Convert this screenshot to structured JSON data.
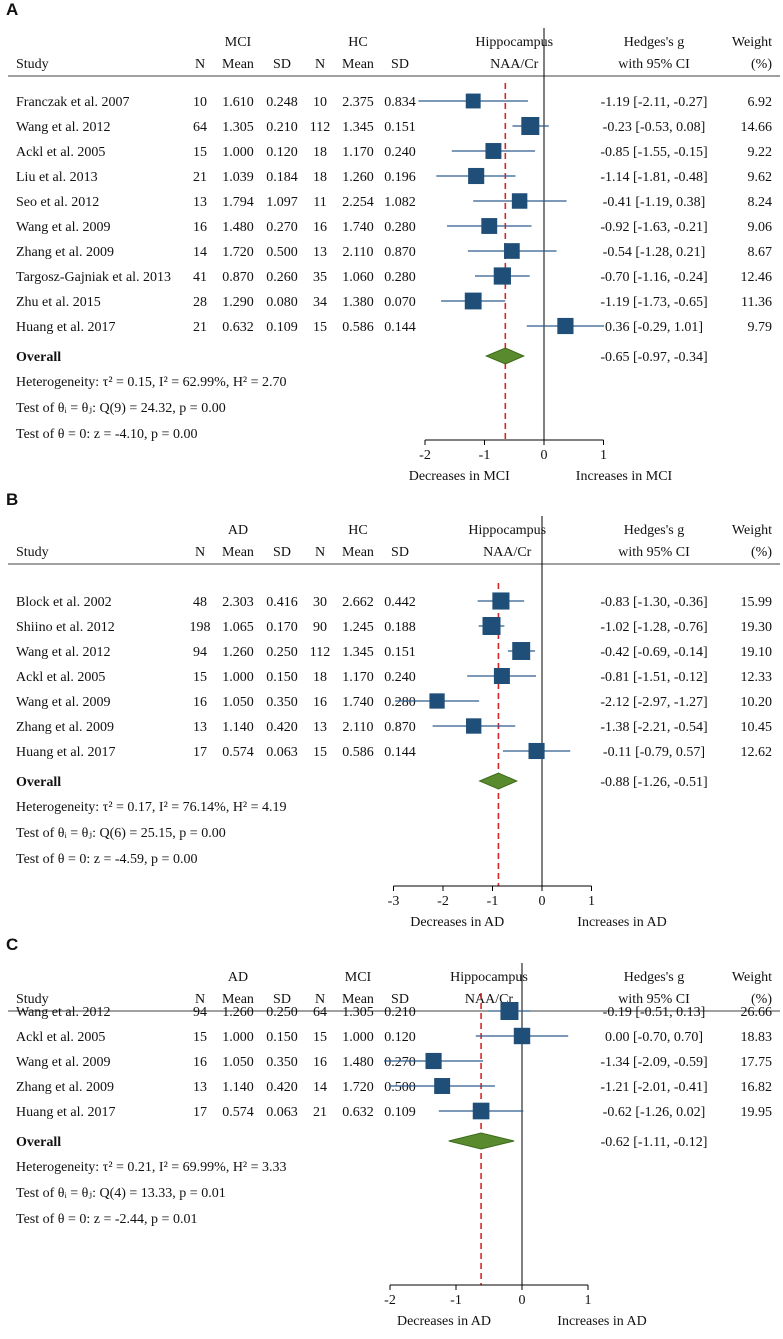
{
  "chart_data": [
    {
      "type": "forest",
      "panel": "A",
      "group1": "MCI",
      "group2": "HC",
      "columns": {
        "study": "Study",
        "n": "N",
        "mean": "Mean",
        "sd": "SD",
        "effect_title1": "Hippocampus",
        "effect_title2": "NAA/Cr",
        "ci_title1": "Hedges's g",
        "ci_title2": "with 95% CI",
        "weight_title1": "Weight",
        "weight_title2": "(%)"
      },
      "studies": [
        {
          "name": "Franczak et al. 2007",
          "n1": "10",
          "mean1": "1.610",
          "sd1": "0.248",
          "n2": "10",
          "mean2": "2.375",
          "sd2": "0.834",
          "g": -1.19,
          "lo": -2.11,
          "hi": -0.27,
          "ci": "-1.19 [-2.11, -0.27]",
          "weight": "6.92"
        },
        {
          "name": "Wang et al. 2012",
          "n1": "64",
          "mean1": "1.305",
          "sd1": "0.210",
          "n2": "112",
          "mean2": "1.345",
          "sd2": "0.151",
          "g": -0.23,
          "lo": -0.53,
          "hi": 0.08,
          "ci": "-0.23 [-0.53,  0.08]",
          "weight": "14.66"
        },
        {
          "name": "Ackl et al. 2005",
          "n1": "15",
          "mean1": "1.000",
          "sd1": "0.120",
          "n2": "18",
          "mean2": "1.170",
          "sd2": "0.240",
          "g": -0.85,
          "lo": -1.55,
          "hi": -0.15,
          "ci": "-0.85 [-1.55, -0.15]",
          "weight": "9.22"
        },
        {
          "name": "Liu et al. 2013",
          "n1": "21",
          "mean1": "1.039",
          "sd1": "0.184",
          "n2": "18",
          "mean2": "1.260",
          "sd2": "0.196",
          "g": -1.14,
          "lo": -1.81,
          "hi": -0.48,
          "ci": "-1.14 [-1.81, -0.48]",
          "weight": "9.62"
        },
        {
          "name": "Seo et al. 2012",
          "n1": "13",
          "mean1": "1.794",
          "sd1": "1.097",
          "n2": "11",
          "mean2": "2.254",
          "sd2": "1.082",
          "g": -0.41,
          "lo": -1.19,
          "hi": 0.38,
          "ci": "-0.41 [-1.19,  0.38]",
          "weight": "8.24"
        },
        {
          "name": "Wang et al. 2009",
          "n1": "16",
          "mean1": "1.480",
          "sd1": "0.270",
          "n2": "16",
          "mean2": "1.740",
          "sd2": "0.280",
          "g": -0.92,
          "lo": -1.63,
          "hi": -0.21,
          "ci": "-0.92 [-1.63, -0.21]",
          "weight": "9.06"
        },
        {
          "name": "Zhang et al. 2009",
          "n1": "14",
          "mean1": "1.720",
          "sd1": "0.500",
          "n2": "13",
          "mean2": "2.110",
          "sd2": "0.870",
          "g": -0.54,
          "lo": -1.28,
          "hi": 0.21,
          "ci": "-0.54 [-1.28,  0.21]",
          "weight": "8.67"
        },
        {
          "name": "Targosz-Gajniak et al. 2013",
          "n1": "41",
          "mean1": "0.870",
          "sd1": "0.260",
          "n2": "35",
          "mean2": "1.060",
          "sd2": "0.280",
          "g": -0.7,
          "lo": -1.16,
          "hi": -0.24,
          "ci": "-0.70 [-1.16, -0.24]",
          "weight": "12.46"
        },
        {
          "name": "Zhu et al. 2015",
          "n1": "28",
          "mean1": "1.290",
          "sd1": "0.080",
          "n2": "34",
          "mean2": "1.380",
          "sd2": "0.070",
          "g": -1.19,
          "lo": -1.73,
          "hi": -0.65,
          "ci": "-1.19 [-1.73, -0.65]",
          "weight": "11.36"
        },
        {
          "name": "Huang et al. 2017",
          "n1": "21",
          "mean1": "0.632",
          "sd1": "0.109",
          "n2": "15",
          "mean2": "0.586",
          "sd2": "0.144",
          "g": 0.36,
          "lo": -0.29,
          "hi": 1.01,
          "ci": " 0.36 [-0.29,  1.01]",
          "weight": "9.79"
        }
      ],
      "overall": {
        "label": "Overall",
        "g": -0.65,
        "lo": -0.97,
        "hi": -0.34,
        "ci": "-0.65 [-0.97, -0.34]"
      },
      "stats": [
        "Heterogeneity: τ² = 0.15, I² = 62.99%, H² = 2.70",
        "Test of θᵢ = θⱼ: Q(9) = 24.32, p = 0.00",
        "Test of θ = 0: z = -4.10, p = 0.00"
      ],
      "xlim": [
        -2,
        1
      ],
      "ticks": [
        -2,
        -1,
        0,
        1
      ],
      "xlabel_left": "Decreases in MCI",
      "xlabel_right": "Increases in MCI"
    },
    {
      "type": "forest",
      "panel": "B",
      "group1": "AD",
      "group2": "HC",
      "columns": {
        "study": "Study",
        "n": "N",
        "mean": "Mean",
        "sd": "SD",
        "effect_title1": "Hippocampus",
        "effect_title2": "NAA/Cr",
        "ci_title1": "Hedges's g",
        "ci_title2": "with 95% CI",
        "weight_title1": "Weight",
        "weight_title2": "(%)"
      },
      "studies": [
        {
          "name": "Block et al. 2002",
          "n1": "48",
          "mean1": "2.303",
          "sd1": "0.416",
          "n2": "30",
          "mean2": "2.662",
          "sd2": "0.442",
          "g": -0.83,
          "lo": -1.3,
          "hi": -0.36,
          "ci": "-0.83 [-1.30, -0.36]",
          "weight": "15.99"
        },
        {
          "name": "Shiino et al. 2012",
          "n1": "198",
          "mean1": "1.065",
          "sd1": "0.170",
          "n2": "90",
          "mean2": "1.245",
          "sd2": "0.188",
          "g": -1.02,
          "lo": -1.28,
          "hi": -0.76,
          "ci": "-1.02 [-1.28, -0.76]",
          "weight": "19.30"
        },
        {
          "name": "Wang et al. 2012",
          "n1": "94",
          "mean1": "1.260",
          "sd1": "0.250",
          "n2": "112",
          "mean2": "1.345",
          "sd2": "0.151",
          "g": -0.42,
          "lo": -0.69,
          "hi": -0.14,
          "ci": "-0.42 [-0.69, -0.14]",
          "weight": "19.10"
        },
        {
          "name": "Ackl et al. 2005",
          "n1": "15",
          "mean1": "1.000",
          "sd1": "0.150",
          "n2": "18",
          "mean2": "1.170",
          "sd2": "0.240",
          "g": -0.81,
          "lo": -1.51,
          "hi": -0.12,
          "ci": "-0.81 [-1.51, -0.12]",
          "weight": "12.33"
        },
        {
          "name": "Wang et al. 2009",
          "n1": "16",
          "mean1": "1.050",
          "sd1": "0.350",
          "n2": "16",
          "mean2": "1.740",
          "sd2": "0.280",
          "g": -2.12,
          "lo": -2.97,
          "hi": -1.27,
          "ci": "-2.12 [-2.97, -1.27]",
          "weight": "10.20"
        },
        {
          "name": "Zhang et al. 2009",
          "n1": "13",
          "mean1": "1.140",
          "sd1": "0.420",
          "n2": "13",
          "mean2": "2.110",
          "sd2": "0.870",
          "g": -1.38,
          "lo": -2.21,
          "hi": -0.54,
          "ci": "-1.38 [-2.21, -0.54]",
          "weight": "10.45"
        },
        {
          "name": "Huang et al. 2017",
          "n1": "17",
          "mean1": "0.574",
          "sd1": "0.063",
          "n2": "15",
          "mean2": "0.586",
          "sd2": "0.144",
          "g": -0.11,
          "lo": -0.79,
          "hi": 0.57,
          "ci": "-0.11 [-0.79,  0.57]",
          "weight": "12.62"
        }
      ],
      "overall": {
        "label": "Overall",
        "g": -0.88,
        "lo": -1.26,
        "hi": -0.51,
        "ci": "-0.88 [-1.26, -0.51]"
      },
      "stats": [
        "Heterogeneity: τ² = 0.17, I² = 76.14%, H² = 4.19",
        "Test of θᵢ = θⱼ: Q(6) = 25.15, p = 0.00",
        "Test of θ = 0: z = -4.59, p = 0.00"
      ],
      "xlim": [
        -3,
        1
      ],
      "ticks": [
        -3,
        -2,
        -1,
        0,
        1
      ],
      "xlabel_left": "Decreases in AD",
      "xlabel_right": "Increases in AD"
    },
    {
      "type": "forest",
      "panel": "C",
      "group1": "AD",
      "group2": "MCI",
      "columns": {
        "study": "Study",
        "n": "N",
        "mean": "Mean",
        "sd": "SD",
        "effect_title1": "Hippocampus",
        "effect_title2": "NAA/Cr",
        "ci_title1": "Hedges's g",
        "ci_title2": "with 95% CI",
        "weight_title1": "Weight",
        "weight_title2": "(%)"
      },
      "studies": [
        {
          "name": "Wang et al. 2012",
          "n1": "94",
          "mean1": "1.260",
          "sd1": "0.250",
          "n2": "64",
          "mean2": "1.305",
          "sd2": "0.210",
          "g": -0.19,
          "lo": -0.51,
          "hi": 0.13,
          "ci": "-0.19 [-0.51,  0.13]",
          "weight": "26.66"
        },
        {
          "name": "Ackl et al. 2005",
          "n1": "15",
          "mean1": "1.000",
          "sd1": "0.150",
          "n2": "15",
          "mean2": "1.000",
          "sd2": "0.120",
          "g": 0.0,
          "lo": -0.7,
          "hi": 0.7,
          "ci": " 0.00 [-0.70,  0.70]",
          "weight": "18.83"
        },
        {
          "name": "Wang et al. 2009",
          "n1": "16",
          "mean1": "1.050",
          "sd1": "0.350",
          "n2": "16",
          "mean2": "1.480",
          "sd2": "0.270",
          "g": -1.34,
          "lo": -2.09,
          "hi": -0.59,
          "ci": "-1.34 [-2.09, -0.59]",
          "weight": "17.75"
        },
        {
          "name": "Zhang et al. 2009",
          "n1": "13",
          "mean1": "1.140",
          "sd1": "0.420",
          "n2": "14",
          "mean2": "1.720",
          "sd2": "0.500",
          "g": -1.21,
          "lo": -2.01,
          "hi": -0.41,
          "ci": "-1.21 [-2.01, -0.41]",
          "weight": "16.82"
        },
        {
          "name": "Huang et al. 2017",
          "n1": "17",
          "mean1": "0.574",
          "sd1": "0.063",
          "n2": "21",
          "mean2": "0.632",
          "sd2": "0.109",
          "g": -0.62,
          "lo": -1.26,
          "hi": 0.02,
          "ci": "-0.62 [-1.26,  0.02]",
          "weight": "19.95"
        }
      ],
      "overall": {
        "label": "Overall",
        "g": -0.62,
        "lo": -1.11,
        "hi": -0.12,
        "ci": "-0.62 [-1.11, -0.12]"
      },
      "stats": [
        "Heterogeneity: τ² = 0.21, I² = 69.99%, H² = 3.33",
        "Test of θᵢ = θⱼ: Q(4) = 13.33, p = 0.01",
        "Test of θ = 0: z = -2.44, p = 0.01"
      ],
      "xlim": [
        -2,
        1
      ],
      "ticks": [
        -2,
        -1,
        0,
        1
      ],
      "xlabel_left": "Decreases in AD",
      "xlabel_right": "Increases in AD"
    }
  ],
  "colors": {
    "marker": "#1f4e79",
    "ci_line": "#2e5d8c",
    "diamond": "#5a8a2e",
    "diamond_edge": "#3d6b1a",
    "ref_line": "#d62728"
  }
}
